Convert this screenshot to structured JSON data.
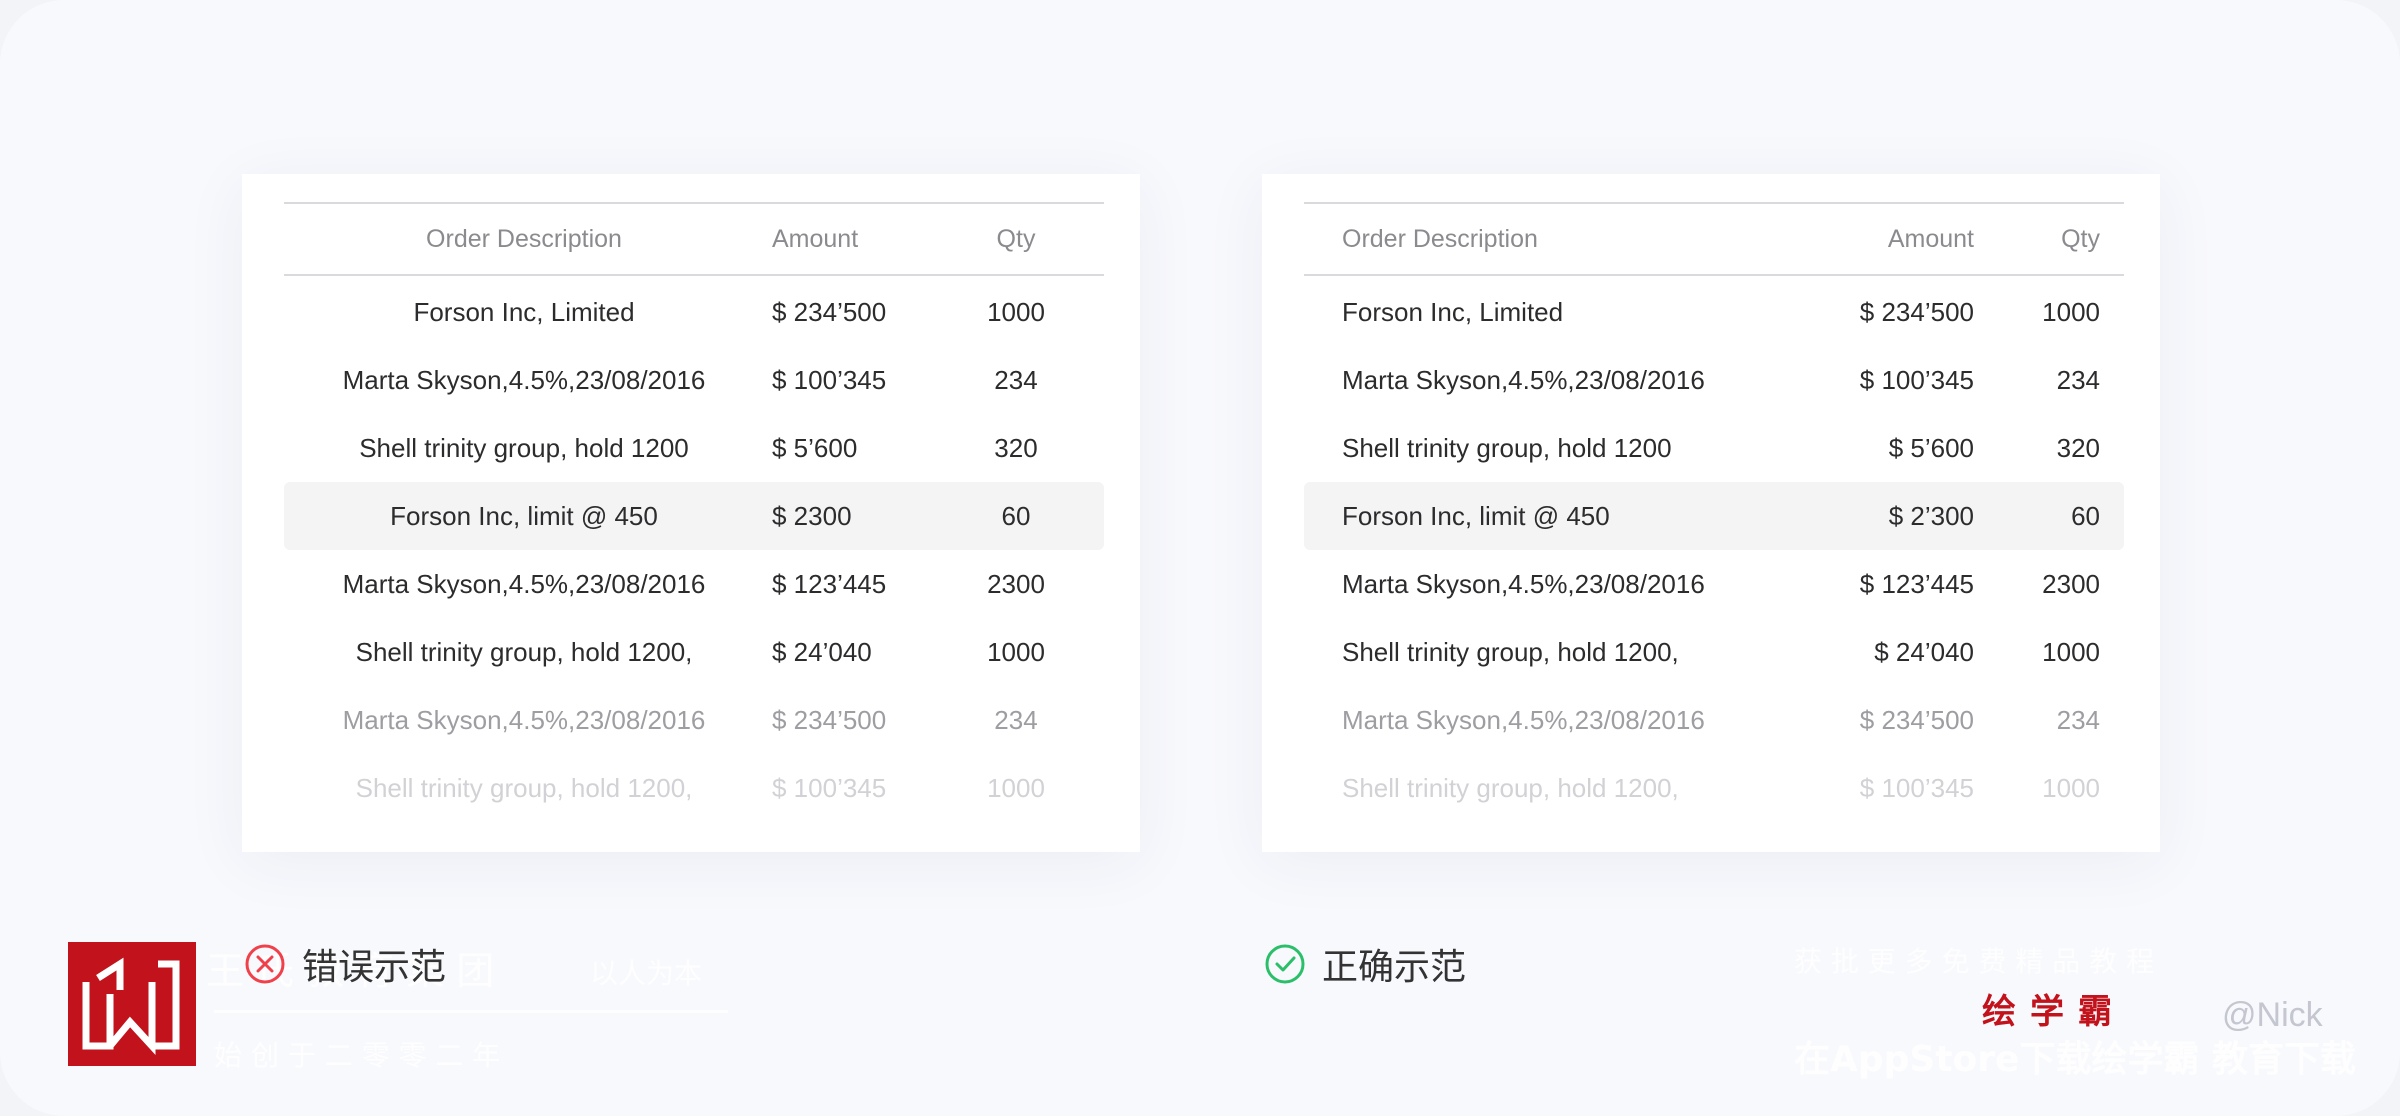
{
  "headers": {
    "description": "Order Description",
    "amount": "Amount",
    "qty": "Qty"
  },
  "wrong_rows": [
    {
      "desc": "Forson Inc, Limited",
      "amount": "$ 234’500",
      "qty": "1000"
    },
    {
      "desc": "Marta Skyson,4.5%,23/08/2016",
      "amount": "$ 100’345",
      "qty": "234"
    },
    {
      "desc": "Shell trinity group, hold 1200",
      "amount": "$ 5’600",
      "qty": "320"
    },
    {
      "desc": "Forson Inc, limit @ 450",
      "amount": "$ 2300",
      "qty": "60"
    },
    {
      "desc": "Marta Skyson,4.5%,23/08/2016",
      "amount": "$ 123’445",
      "qty": "2300"
    },
    {
      "desc": "Shell trinity group, hold 1200,",
      "amount": "$ 24’040",
      "qty": "1000"
    },
    {
      "desc": "Marta Skyson,4.5%,23/08/2016",
      "amount": "$ 234’500",
      "qty": "234"
    },
    {
      "desc": "Shell trinity group, hold 1200,",
      "amount": "$ 100’345",
      "qty": "1000"
    }
  ],
  "right_rows": [
    {
      "desc": "Forson Inc, Limited",
      "amount": "$ 234’500",
      "qty": "1000"
    },
    {
      "desc": "Marta Skyson,4.5%,23/08/2016",
      "amount": "$ 100’345",
      "qty": "234"
    },
    {
      "desc": "Shell trinity group, hold 1200",
      "amount": "$ 5’600",
      "qty": "320"
    },
    {
      "desc": "Forson Inc, limit @ 450",
      "amount": "$ 2’300",
      "qty": "60"
    },
    {
      "desc": "Marta Skyson,4.5%,23/08/2016",
      "amount": "$ 123’445",
      "qty": "2300"
    },
    {
      "desc": "Shell trinity group, hold 1200,",
      "amount": "$ 24’040",
      "qty": "1000"
    },
    {
      "desc": "Marta Skyson,4.5%,23/08/2016",
      "amount": "$ 234’500",
      "qty": "234"
    },
    {
      "desc": "Shell trinity group, hold 1200,",
      "amount": "$ 100’345",
      "qty": "1000"
    }
  ],
  "captions": {
    "wrong": "错误示范",
    "right": "正确示范"
  },
  "watermark": {
    "brand": "绘学霸",
    "credit": "@Nick",
    "left_ghost_1": "王 氏 教 育 集 团",
    "left_ghost_2": "以人为本",
    "left_ghost_3": "始 创 于 二 零 零 二 年",
    "right_ghost_1": "获 批 更 多 免 费 精 品 教 程",
    "right_ghost_2": "在AppStore下载绘学霸 教育下载"
  },
  "colors": {
    "wrong_accent": "#f0404a",
    "right_accent": "#2bbf6a",
    "brand_red": "#c2121b"
  }
}
